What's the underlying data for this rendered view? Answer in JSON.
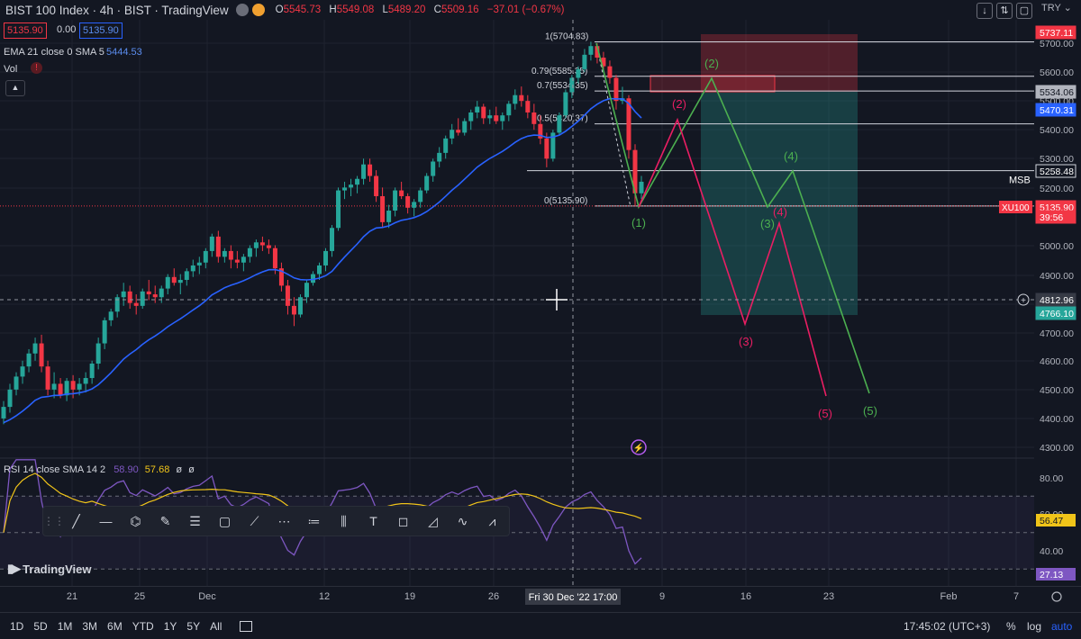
{
  "header": {
    "title": "BIST 100 Index · 4h · BIST · TradingView",
    "ohlc": [
      {
        "k": "O",
        "v": "5545.73"
      },
      {
        "k": "H",
        "v": "5549.08"
      },
      {
        "k": "L",
        "v": "5489.20"
      },
      {
        "k": "C",
        "v": "5509.16"
      },
      {
        "k": "",
        "v": "−37.01 (−0.67%)"
      }
    ],
    "bid": "5135.90",
    "spread": "0.00",
    "ask": "5135.90",
    "ema_label": "EMA 21 close 0 SMA 5",
    "ema_value": "5444.53",
    "vol_label": "Vol",
    "currency": "TRY",
    "collapse_icon": "chevron-up-icon"
  },
  "rsi": {
    "label": "RSI 14 close SMA 14 2",
    "v1": "58.90",
    "v2": "57.68",
    "v3": "ø",
    "v4": "ø",
    "ticks": [
      "80.00",
      "60.00",
      "40.00"
    ],
    "tag1": "56.47",
    "tag2": "27.13"
  },
  "colors": {
    "up": "#26a69a",
    "down": "#f23645",
    "ema": "#2962ff",
    "wave_green": "#4caf50",
    "wave_pink": "#e91e63",
    "rsi": "#7e57c2",
    "rsi_ma": "#f0c419"
  },
  "price_axis": {
    "ticks": [
      "5700.00",
      "5600.00",
      "5500.00",
      "5400.00",
      "5300.00",
      "5200.00",
      "5000.00",
      "4900.00",
      "4800.00",
      "4700.00",
      "4600.00",
      "4500.00",
      "4400.00",
      "4300.00"
    ],
    "tags": [
      {
        "text": "5737.11",
        "bg": "#f23645",
        "fg": "#ffffff"
      },
      {
        "text": "5534.06",
        "bg": "#b2b5be",
        "fg": "#131722"
      },
      {
        "text": "5470.31",
        "bg": "#2962ff",
        "fg": "#ffffff"
      },
      {
        "text": "5258.48",
        "bg": "#131722",
        "fg": "#ffffff"
      },
      {
        "text": "5135.90",
        "bg": "#f23645",
        "fg": "#ffffff"
      },
      {
        "text": "39:56",
        "bg": "#f23645",
        "fg": "#ffffff"
      },
      {
        "text": "4812.96",
        "bg": "#363a45",
        "fg": "#ffffff"
      },
      {
        "text": "4766.10",
        "bg": "#26a69a",
        "fg": "#ffffff"
      }
    ],
    "msb": "MSB",
    "xu100": "XU100"
  },
  "fib": [
    {
      "label": "1(5704.83)"
    },
    {
      "label": "0.79(5585.35)"
    },
    {
      "label": "0.7(5534.35)"
    },
    {
      "label": "0.5(5420.37)"
    },
    {
      "label": "0(5135.90)"
    }
  ],
  "waves": {
    "green": [
      "(1)",
      "(2)",
      "(3)",
      "(4)",
      "(5)"
    ],
    "pink": [
      "(2)",
      "(3)",
      "(4)",
      "(5)"
    ]
  },
  "time_axis": {
    "ticks": [
      "21",
      "25",
      "Dec",
      "12",
      "19",
      "26",
      "9",
      "16",
      "23",
      "Feb",
      "7"
    ],
    "crosshair": "Fri 30 Dec '22   17:00"
  },
  "bottom_bar": {
    "periods": [
      "1D",
      "5D",
      "1M",
      "3M",
      "6M",
      "YTD",
      "1Y",
      "5Y",
      "All"
    ],
    "clock": "17:45:02 (UTC+3)",
    "pct": "%",
    "log": "log",
    "auto": "auto"
  },
  "toolbar": [
    "trend-line-icon",
    "horizontal-ray-icon",
    "path-icon",
    "brush-icon",
    "fib-retracement-icon",
    "rectangle-icon",
    "long-position-icon",
    "projection-icon",
    "pitchfork-icon",
    "bar-pattern-icon",
    "text-icon",
    "note-icon",
    "arc-icon",
    "elliott-wave-icon",
    "abcd-pattern-icon"
  ],
  "branding": "TradingView",
  "chart_data": {
    "type": "candlestick",
    "title": "BIST 100 Index · 4h · BIST · TradingView",
    "ylim": [
      4200,
      5760
    ],
    "candles": [
      [
        4400,
        4460,
        4380,
        4440
      ],
      [
        4440,
        4520,
        4420,
        4500
      ],
      [
        4500,
        4560,
        4480,
        4545
      ],
      [
        4545,
        4600,
        4520,
        4580
      ],
      [
        4580,
        4640,
        4560,
        4625
      ],
      [
        4625,
        4680,
        4600,
        4660
      ],
      [
        4660,
        4690,
        4560,
        4580
      ],
      [
        4580,
        4600,
        4480,
        4500
      ],
      [
        4500,
        4560,
        4470,
        4520
      ],
      [
        4520,
        4540,
        4470,
        4480
      ],
      [
        4480,
        4540,
        4460,
        4530
      ],
      [
        4530,
        4550,
        4470,
        4500
      ],
      [
        4500,
        4540,
        4480,
        4520
      ],
      [
        4520,
        4560,
        4490,
        4540
      ],
      [
        4540,
        4600,
        4520,
        4590
      ],
      [
        4590,
        4680,
        4570,
        4660
      ],
      [
        4660,
        4750,
        4640,
        4740
      ],
      [
        4740,
        4780,
        4720,
        4770
      ],
      [
        4770,
        4830,
        4750,
        4820
      ],
      [
        4820,
        4870,
        4790,
        4840
      ],
      [
        4840,
        4860,
        4780,
        4800
      ],
      [
        4800,
        4830,
        4760,
        4790
      ],
      [
        4790,
        4850,
        4780,
        4840
      ],
      [
        4840,
        4880,
        4810,
        4830
      ],
      [
        4830,
        4860,
        4800,
        4820
      ],
      [
        4820,
        4860,
        4800,
        4850
      ],
      [
        4850,
        4900,
        4830,
        4890
      ],
      [
        4890,
        4920,
        4860,
        4870
      ],
      [
        4870,
        4900,
        4830,
        4880
      ],
      [
        4880,
        4920,
        4860,
        4910
      ],
      [
        4910,
        4950,
        4890,
        4930
      ],
      [
        4930,
        4960,
        4900,
        4940
      ],
      [
        4940,
        4990,
        4920,
        4980
      ],
      [
        4980,
        5040,
        4960,
        5030
      ],
      [
        5030,
        5050,
        4940,
        4960
      ],
      [
        4960,
        4990,
        4940,
        4980
      ],
      [
        4980,
        5000,
        4920,
        4950
      ],
      [
        4950,
        4980,
        4920,
        4940
      ],
      [
        4940,
        4970,
        4910,
        4960
      ],
      [
        4960,
        5000,
        4940,
        4990
      ],
      [
        4990,
        5020,
        4960,
        5010
      ],
      [
        5010,
        5030,
        4980,
        5000
      ],
      [
        5000,
        5020,
        4970,
        4990
      ],
      [
        4990,
        5000,
        4900,
        4920
      ],
      [
        4920,
        4940,
        4840,
        4860
      ],
      [
        4860,
        4880,
        4760,
        4790
      ],
      [
        4790,
        4820,
        4720,
        4760
      ],
      [
        4760,
        4830,
        4750,
        4820
      ],
      [
        4820,
        4880,
        4800,
        4870
      ],
      [
        4870,
        4910,
        4860,
        4900
      ],
      [
        4900,
        4940,
        4880,
        4930
      ],
      [
        4930,
        4990,
        4910,
        4980
      ],
      [
        4980,
        5070,
        4960,
        5060
      ],
      [
        5060,
        5200,
        5050,
        5190
      ],
      [
        5190,
        5220,
        5160,
        5200
      ],
      [
        5200,
        5230,
        5170,
        5210
      ],
      [
        5210,
        5240,
        5180,
        5230
      ],
      [
        5230,
        5300,
        5210,
        5280
      ],
      [
        5280,
        5300,
        5220,
        5240
      ],
      [
        5240,
        5260,
        5150,
        5170
      ],
      [
        5170,
        5200,
        5060,
        5080
      ],
      [
        5080,
        5140,
        5060,
        5120
      ],
      [
        5120,
        5200,
        5100,
        5190
      ],
      [
        5190,
        5220,
        5160,
        5170
      ],
      [
        5170,
        5180,
        5110,
        5130
      ],
      [
        5130,
        5160,
        5100,
        5150
      ],
      [
        5150,
        5200,
        5130,
        5190
      ],
      [
        5190,
        5250,
        5180,
        5240
      ],
      [
        5240,
        5300,
        5220,
        5290
      ],
      [
        5290,
        5340,
        5270,
        5320
      ],
      [
        5320,
        5380,
        5300,
        5370
      ],
      [
        5370,
        5420,
        5350,
        5400
      ],
      [
        5400,
        5440,
        5380,
        5390
      ],
      [
        5390,
        5440,
        5380,
        5430
      ],
      [
        5430,
        5470,
        5400,
        5460
      ],
      [
        5460,
        5500,
        5440,
        5480
      ],
      [
        5480,
        5490,
        5420,
        5440
      ],
      [
        5440,
        5470,
        5420,
        5450
      ],
      [
        5450,
        5480,
        5420,
        5430
      ],
      [
        5430,
        5460,
        5400,
        5450
      ],
      [
        5450,
        5500,
        5430,
        5490
      ],
      [
        5490,
        5540,
        5470,
        5520
      ],
      [
        5520,
        5550,
        5480,
        5500
      ],
      [
        5500,
        5520,
        5440,
        5460
      ],
      [
        5460,
        5490,
        5400,
        5420
      ],
      [
        5420,
        5450,
        5350,
        5370
      ],
      [
        5370,
        5390,
        5270,
        5300
      ],
      [
        5300,
        5400,
        5290,
        5390
      ],
      [
        5390,
        5460,
        5380,
        5450
      ],
      [
        5450,
        5540,
        5440,
        5530
      ],
      [
        5530,
        5590,
        5510,
        5580
      ],
      [
        5580,
        5620,
        5560,
        5610
      ],
      [
        5610,
        5680,
        5600,
        5660
      ],
      [
        5660,
        5705,
        5640,
        5690
      ],
      [
        5690,
        5700,
        5630,
        5650
      ],
      [
        5650,
        5670,
        5610,
        5620
      ],
      [
        5620,
        5640,
        5560,
        5580
      ],
      [
        5580,
        5590,
        5470,
        5500
      ],
      [
        5500,
        5549,
        5489,
        5509
      ],
      [
        5509,
        5520,
        5300,
        5330
      ],
      [
        5330,
        5350,
        5136,
        5180
      ],
      [
        5180,
        5240,
        5160,
        5220
      ]
    ],
    "ema_series_start": 4380,
    "levels": [
      5704.83,
      5585.35,
      5534.35,
      5420.37,
      5258.48,
      5135.9
    ],
    "rsi_ylim": [
      20,
      90
    ]
  }
}
